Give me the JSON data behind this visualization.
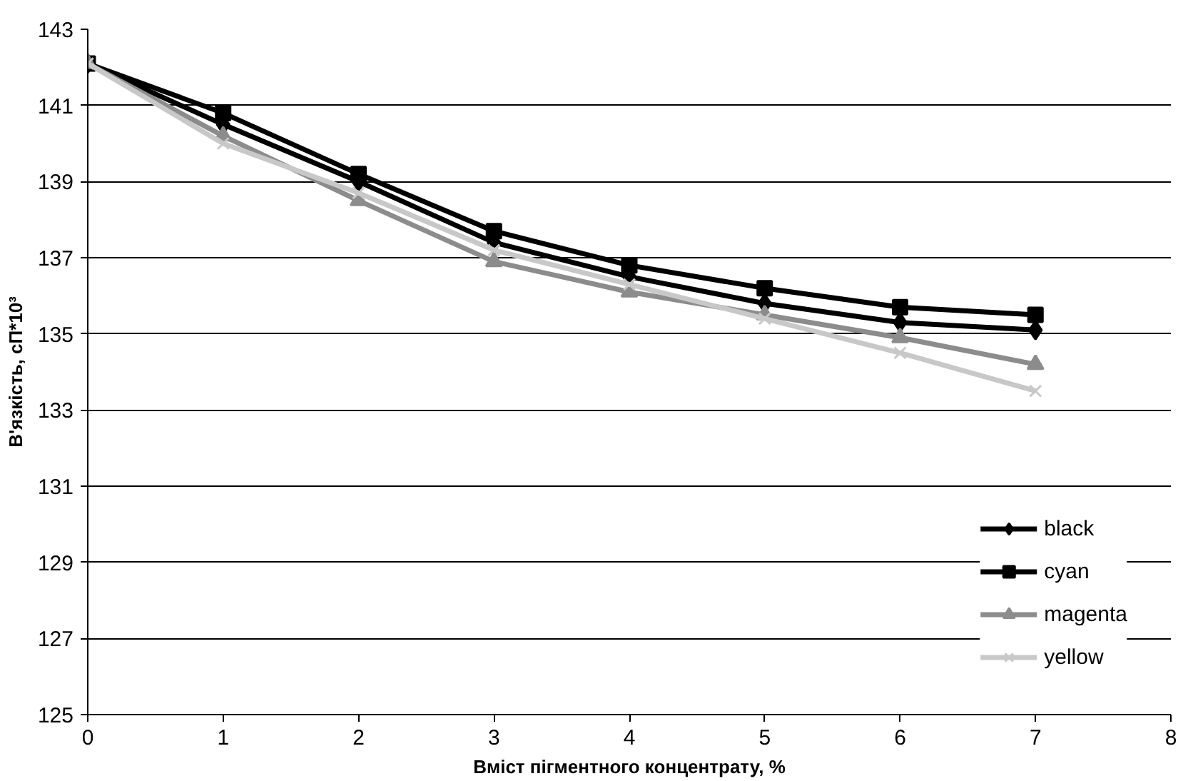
{
  "chart_data": {
    "type": "line",
    "xlabel": "Вміст пігментного концентрату, %",
    "ylabel": "В'язкість, сП*10³",
    "x": [
      0,
      1,
      2,
      3,
      4,
      5,
      6,
      7
    ],
    "series": [
      {
        "name": "black",
        "color": "#000000",
        "marker": "diamond",
        "values": [
          142.1,
          140.5,
          139.0,
          137.4,
          136.5,
          135.8,
          135.3,
          135.1
        ]
      },
      {
        "name": "cyan",
        "color": "#000000",
        "marker": "square",
        "values": [
          142.1,
          140.8,
          139.2,
          137.7,
          136.8,
          136.2,
          135.7,
          135.5
        ]
      },
      {
        "name": "magenta",
        "color": "#8c8c8c",
        "marker": "triangle",
        "values": [
          142.1,
          140.2,
          138.5,
          136.9,
          136.1,
          135.5,
          134.9,
          134.2
        ]
      },
      {
        "name": "yellow",
        "color": "#c8c8c8",
        "marker": "cross",
        "values": [
          142.1,
          140.0,
          138.7,
          137.2,
          136.3,
          135.4,
          134.5,
          133.5
        ]
      }
    ],
    "xlim": [
      0,
      8
    ],
    "ylim": [
      125,
      143
    ],
    "xticks": [
      0,
      1,
      2,
      3,
      4,
      5,
      6,
      7,
      8
    ],
    "yticks": [
      125,
      127,
      129,
      131,
      133,
      135,
      137,
      139,
      141,
      143
    ],
    "grid": "y",
    "legend": "bottom right",
    "line_style": "solid"
  }
}
